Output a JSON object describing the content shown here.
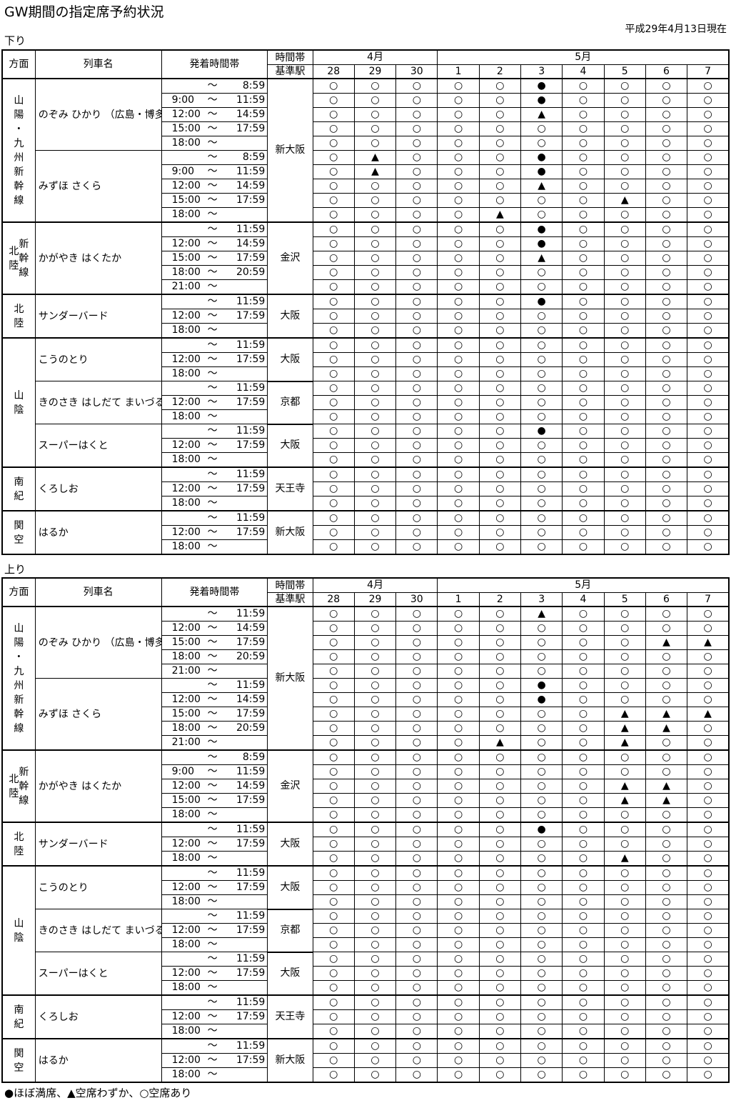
{
  "title": "GW期間の指定席予約状況",
  "as_of": "平成29年4月13日現在",
  "legend": "●ほぼ満席、▲空席わずか、○空席あり",
  "header": {
    "direction": "方面",
    "train_name": "列車名",
    "time_band": "発着時間帯",
    "base_station_1": "時間帯",
    "base_station_2": "基準駅",
    "month_apr": "4月",
    "month_may": "5月",
    "dates": [
      "28",
      "29",
      "30",
      "1",
      "2",
      "3",
      "4",
      "5",
      "6",
      "7"
    ]
  },
  "sections": [
    {
      "label": "下り",
      "groups": [
        {
          "direction": "山陽・九州新幹線",
          "dir_style": "col1",
          "trains": [
            {
              "name": "のぞみ\nひかり\n（広島・博多行）",
              "station": "新大阪",
              "station_span": 10,
              "rows": [
                {
                  "f": "",
                  "t": "8:59",
                  "s": "○○○○○●○○○○"
                },
                {
                  "f": "9:00",
                  "t": "11:59",
                  "s": "○○○○○●○○○○"
                },
                {
                  "f": "12:00",
                  "t": "14:59",
                  "s": "○○○○○▲○○○○"
                },
                {
                  "f": "15:00",
                  "t": "17:59",
                  "s": "○○○○○○○○○○"
                },
                {
                  "f": "18:00",
                  "t": "",
                  "s": "○○○○○○○○○○"
                }
              ]
            },
            {
              "name": "みずほ\nさくら",
              "station": null,
              "rows": [
                {
                  "f": "",
                  "t": "8:59",
                  "s": "○▲○○○●○○○○"
                },
                {
                  "f": "9:00",
                  "t": "11:59",
                  "s": "○▲○○○●○○○○"
                },
                {
                  "f": "12:00",
                  "t": "14:59",
                  "s": "○○○○○▲○○○○"
                },
                {
                  "f": "15:00",
                  "t": "17:59",
                  "s": "○○○○○○○▲○○"
                },
                {
                  "f": "18:00",
                  "t": "",
                  "s": "○○○○▲○○○○○"
                }
              ]
            }
          ]
        },
        {
          "direction": "北陸新幹線",
          "dir_style": "hk",
          "trains": [
            {
              "name": "かがやき\nはくたか",
              "station": "金沢",
              "station_span": 5,
              "rows": [
                {
                  "f": "",
                  "t": "11:59",
                  "s": "○○○○○●○○○○"
                },
                {
                  "f": "12:00",
                  "t": "14:59",
                  "s": "○○○○○●○○○○"
                },
                {
                  "f": "15:00",
                  "t": "17:59",
                  "s": "○○○○○▲○○○○"
                },
                {
                  "f": "18:00",
                  "t": "20:59",
                  "s": "○○○○○○○○○○"
                },
                {
                  "f": "21:00",
                  "t": "",
                  "s": "○○○○○○○○○○"
                }
              ]
            }
          ]
        },
        {
          "direction": "北陸",
          "dir_style": "col1",
          "trains": [
            {
              "name": "サンダーバード",
              "station": "大阪",
              "station_span": 3,
              "rows": [
                {
                  "f": "",
                  "t": "11:59",
                  "s": "○○○○○●○○○○"
                },
                {
                  "f": "12:00",
                  "t": "17:59",
                  "s": "○○○○○○○○○○"
                },
                {
                  "f": "18:00",
                  "t": "",
                  "s": "○○○○○○○○○○"
                }
              ]
            }
          ]
        },
        {
          "direction": "山陰",
          "dir_style": "col1",
          "trains": [
            {
              "name": "こうのとり",
              "station": "大阪",
              "station_span": 3,
              "rows": [
                {
                  "f": "",
                  "t": "11:59",
                  "s": "○○○○○○○○○○"
                },
                {
                  "f": "12:00",
                  "t": "17:59",
                  "s": "○○○○○○○○○○"
                },
                {
                  "f": "18:00",
                  "t": "",
                  "s": "○○○○○○○○○○"
                }
              ]
            },
            {
              "name": "きのさき\nはしだて\nまいづる",
              "station": "京都",
              "station_span": 3,
              "rows": [
                {
                  "f": "",
                  "t": "11:59",
                  "s": "○○○○○○○○○○"
                },
                {
                  "f": "12:00",
                  "t": "17:59",
                  "s": "○○○○○○○○○○"
                },
                {
                  "f": "18:00",
                  "t": "",
                  "s": "○○○○○○○○○○"
                }
              ]
            },
            {
              "name": "スーパーはくと",
              "station": "大阪",
              "station_span": 3,
              "rows": [
                {
                  "f": "",
                  "t": "11:59",
                  "s": "○○○○○●○○○○"
                },
                {
                  "f": "12:00",
                  "t": "17:59",
                  "s": "○○○○○○○○○○"
                },
                {
                  "f": "18:00",
                  "t": "",
                  "s": "○○○○○○○○○○"
                }
              ]
            }
          ]
        },
        {
          "direction": "南紀",
          "dir_style": "col1",
          "trains": [
            {
              "name": "くろしお",
              "station": "天王寺",
              "station_span": 3,
              "rows": [
                {
                  "f": "",
                  "t": "11:59",
                  "s": "○○○○○○○○○○"
                },
                {
                  "f": "12:00",
                  "t": "17:59",
                  "s": "○○○○○○○○○○"
                },
                {
                  "f": "18:00",
                  "t": "",
                  "s": "○○○○○○○○○○"
                }
              ]
            }
          ]
        },
        {
          "direction": "関空",
          "dir_style": "col1",
          "trains": [
            {
              "name": "はるか",
              "station": "新大阪",
              "station_span": 3,
              "rows": [
                {
                  "f": "",
                  "t": "11:59",
                  "s": "○○○○○○○○○○"
                },
                {
                  "f": "12:00",
                  "t": "17:59",
                  "s": "○○○○○○○○○○"
                },
                {
                  "f": "18:00",
                  "t": "",
                  "s": "○○○○○○○○○○"
                }
              ]
            }
          ]
        }
      ]
    },
    {
      "label": "上り",
      "groups": [
        {
          "direction": "山陽・九州新幹線",
          "dir_style": "col1",
          "trains": [
            {
              "name": "のぞみ\nひかり\n（広島・博多始発）",
              "station": "新大阪",
              "station_span": 10,
              "rows": [
                {
                  "f": "",
                  "t": "11:59",
                  "s": "○○○○○▲○○○○"
                },
                {
                  "f": "12:00",
                  "t": "14:59",
                  "s": "○○○○○○○○○○"
                },
                {
                  "f": "15:00",
                  "t": "17:59",
                  "s": "○○○○○○○○▲▲"
                },
                {
                  "f": "18:00",
                  "t": "20:59",
                  "s": "○○○○○○○○○○"
                },
                {
                  "f": "21:00",
                  "t": "",
                  "s": "○○○○○○○○○○"
                }
              ]
            },
            {
              "name": "みずほ\nさくら",
              "station": null,
              "rows": [
                {
                  "f": "",
                  "t": "11:59",
                  "s": "○○○○○●○○○○"
                },
                {
                  "f": "12:00",
                  "t": "14:59",
                  "s": "○○○○○●○○○○"
                },
                {
                  "f": "15:00",
                  "t": "17:59",
                  "s": "○○○○○○○▲▲▲"
                },
                {
                  "f": "18:00",
                  "t": "20:59",
                  "s": "○○○○○○○▲▲○"
                },
                {
                  "f": "21:00",
                  "t": "",
                  "s": "○○○○▲○○▲○○"
                }
              ]
            }
          ]
        },
        {
          "direction": "北陸新幹線",
          "dir_style": "hk",
          "trains": [
            {
              "name": "かがやき\nはくたか",
              "station": "金沢",
              "station_span": 5,
              "rows": [
                {
                  "f": "",
                  "t": "8:59",
                  "s": "○○○○○○○○○○"
                },
                {
                  "f": "9:00",
                  "t": "11:59",
                  "s": "○○○○○○○○○○"
                },
                {
                  "f": "12:00",
                  "t": "14:59",
                  "s": "○○○○○○○▲▲○"
                },
                {
                  "f": "15:00",
                  "t": "17:59",
                  "s": "○○○○○○○▲▲○"
                },
                {
                  "f": "18:00",
                  "t": "",
                  "s": "○○○○○○○○○○"
                }
              ]
            }
          ]
        },
        {
          "direction": "北陸",
          "dir_style": "col1",
          "trains": [
            {
              "name": "サンダーバード",
              "station": "大阪",
              "station_span": 3,
              "rows": [
                {
                  "f": "",
                  "t": "11:59",
                  "s": "○○○○○●○○○○"
                },
                {
                  "f": "12:00",
                  "t": "17:59",
                  "s": "○○○○○○○○○○"
                },
                {
                  "f": "18:00",
                  "t": "",
                  "s": "○○○○○○○▲○○"
                }
              ]
            }
          ]
        },
        {
          "direction": "山陰",
          "dir_style": "col1",
          "trains": [
            {
              "name": "こうのとり",
              "station": "大阪",
              "station_span": 3,
              "rows": [
                {
                  "f": "",
                  "t": "11:59",
                  "s": "○○○○○○○○○○"
                },
                {
                  "f": "12:00",
                  "t": "17:59",
                  "s": "○○○○○○○○○○"
                },
                {
                  "f": "18:00",
                  "t": "",
                  "s": "○○○○○○○○○○"
                }
              ]
            },
            {
              "name": "きのさき\nはしだて\nまいづる",
              "station": "京都",
              "station_span": 3,
              "rows": [
                {
                  "f": "",
                  "t": "11:59",
                  "s": "○○○○○○○○○○"
                },
                {
                  "f": "12:00",
                  "t": "17:59",
                  "s": "○○○○○○○○○○"
                },
                {
                  "f": "18:00",
                  "t": "",
                  "s": "○○○○○○○○○○"
                }
              ]
            },
            {
              "name": "スーパーはくと",
              "station": "大阪",
              "station_span": 3,
              "rows": [
                {
                  "f": "",
                  "t": "11:59",
                  "s": "○○○○○○○○○○"
                },
                {
                  "f": "12:00",
                  "t": "17:59",
                  "s": "○○○○○○○○○○"
                },
                {
                  "f": "18:00",
                  "t": "",
                  "s": "○○○○○○○○○○"
                }
              ]
            }
          ]
        },
        {
          "direction": "南紀",
          "dir_style": "col1",
          "trains": [
            {
              "name": "くろしお",
              "station": "天王寺",
              "station_span": 3,
              "rows": [
                {
                  "f": "",
                  "t": "11:59",
                  "s": "○○○○○○○○○○"
                },
                {
                  "f": "12:00",
                  "t": "17:59",
                  "s": "○○○○○○○○○○"
                },
                {
                  "f": "18:00",
                  "t": "",
                  "s": "○○○○○○○○○○"
                }
              ]
            }
          ]
        },
        {
          "direction": "関空",
          "dir_style": "col1",
          "trains": [
            {
              "name": "はるか",
              "station": "新大阪",
              "station_span": 3,
              "rows": [
                {
                  "f": "",
                  "t": "11:59",
                  "s": "○○○○○○○○○○"
                },
                {
                  "f": "12:00",
                  "t": "17:59",
                  "s": "○○○○○○○○○○"
                },
                {
                  "f": "18:00",
                  "t": "",
                  "s": "○○○○○○○○○○"
                }
              ]
            }
          ]
        }
      ]
    }
  ]
}
